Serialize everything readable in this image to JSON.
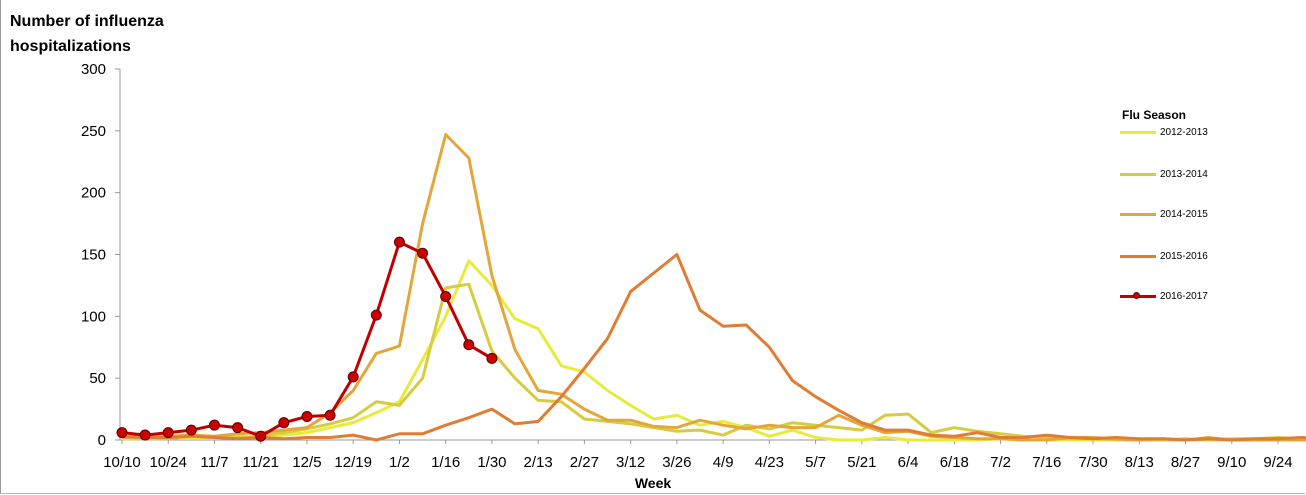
{
  "chart_data": {
    "type": "line",
    "ylabel_line1": "Number of influenza",
    "ylabel_line2": "hospitalizations",
    "xlabel": "Week",
    "ylim": [
      0,
      300
    ],
    "yticks": [
      0,
      50,
      100,
      150,
      200,
      250,
      300
    ],
    "x_tick_labels": [
      "10/10",
      "10/24",
      "11/7",
      "11/21",
      "12/5",
      "12/19",
      "1/2",
      "1/16",
      "1/30",
      "2/13",
      "2/27",
      "3/12",
      "3/26",
      "4/9",
      "4/23",
      "5/7",
      "5/21",
      "6/4",
      "6/18",
      "7/2",
      "7/16",
      "7/30",
      "8/13",
      "8/27",
      "9/10",
      "9/24"
    ],
    "legend_title": "Flu Season",
    "legend_position": "right",
    "grid": false,
    "series": [
      {
        "name": "2012-2013",
        "color": "#e8ea3c",
        "marker": false,
        "values": [
          1,
          1,
          2,
          2,
          2,
          3,
          2,
          4,
          6,
          10,
          14,
          22,
          31,
          65,
          100,
          145,
          125,
          98,
          90,
          60,
          55,
          40,
          28,
          17,
          20,
          12,
          15,
          10,
          3,
          8,
          2,
          0,
          0,
          2,
          0,
          0,
          0,
          0,
          1,
          0,
          0,
          0,
          0,
          0,
          0,
          0,
          0,
          0,
          0,
          0,
          0,
          0,
          0,
          0
        ]
      },
      {
        "name": "2013-2014",
        "color": "#d6cc3e",
        "marker": false,
        "values": [
          2,
          1,
          1,
          3,
          2,
          2,
          3,
          6,
          9,
          13,
          18,
          31,
          28,
          50,
          123,
          126,
          72,
          50,
          32,
          31,
          17,
          15,
          13,
          10,
          7,
          8,
          4,
          12,
          9,
          14,
          12,
          10,
          8,
          20,
          21,
          6,
          10,
          7,
          5,
          3,
          2,
          1,
          1,
          0,
          0,
          0,
          1,
          0,
          1,
          1,
          2,
          1,
          1,
          0
        ]
      },
      {
        "name": "2014-2015",
        "color": "#e4a63a",
        "marker": false,
        "values": [
          2,
          2,
          3,
          4,
          3,
          5,
          6,
          8,
          10,
          22,
          40,
          70,
          76,
          175,
          247,
          228,
          133,
          73,
          40,
          37,
          25,
          16,
          16,
          11,
          10,
          16,
          12,
          9,
          12,
          10,
          10,
          20,
          12,
          6,
          7,
          3,
          2,
          1,
          1,
          0,
          0,
          2,
          2,
          1,
          0,
          1,
          0,
          2,
          0,
          0,
          0,
          0,
          0,
          0
        ]
      },
      {
        "name": "2015-2016",
        "color": "#e07d35",
        "marker": false,
        "values": [
          3,
          2,
          2,
          3,
          2,
          1,
          2,
          1,
          2,
          2,
          4,
          0,
          5,
          5,
          12,
          18,
          25,
          13,
          15,
          35,
          58,
          82,
          120,
          135,
          150,
          105,
          92,
          93,
          75,
          48,
          35,
          24,
          14,
          8,
          8,
          4,
          3,
          6,
          2,
          2,
          4,
          2,
          1,
          2,
          1,
          1,
          0,
          1,
          0,
          1,
          1,
          2,
          1,
          1
        ]
      },
      {
        "name": "2016-2017",
        "color": "#c00000",
        "marker": true,
        "values": [
          6,
          4,
          6,
          8,
          12,
          10,
          3,
          14,
          19,
          20,
          51,
          101,
          160,
          151,
          116,
          77,
          66
        ]
      }
    ]
  }
}
